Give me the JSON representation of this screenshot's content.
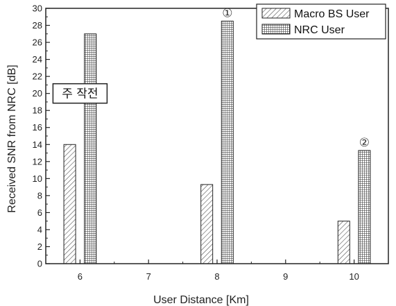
{
  "chart_data": {
    "type": "bar",
    "xlabel": "User Distance [Km]",
    "ylabel": "Received SNR from NRC [dB]",
    "x_ticks": [
      6,
      7,
      8,
      9,
      10
    ],
    "xlim": [
      5.5,
      10.5
    ],
    "ylim": [
      0,
      30
    ],
    "y_ticks": [
      0,
      2,
      4,
      6,
      8,
      10,
      12,
      14,
      16,
      18,
      20,
      22,
      24,
      26,
      28,
      30
    ],
    "categories": [
      6,
      8,
      10
    ],
    "series": [
      {
        "name": "Macro BS User",
        "pattern": "diagonal-hatch",
        "values": [
          14,
          9.3,
          5.0
        ]
      },
      {
        "name": "NRC User",
        "pattern": "crosshatch",
        "values": [
          27,
          28.5,
          13.3
        ]
      }
    ],
    "legend_position": "top-right",
    "grid": false,
    "annotations": [
      {
        "text": "①",
        "x": 8.15,
        "y": 28.5
      },
      {
        "text": "②",
        "x": 10.15,
        "y": 13.3
      }
    ],
    "note_box": {
      "text": "주 작전",
      "x": 6.0,
      "y": 20.0
    }
  }
}
